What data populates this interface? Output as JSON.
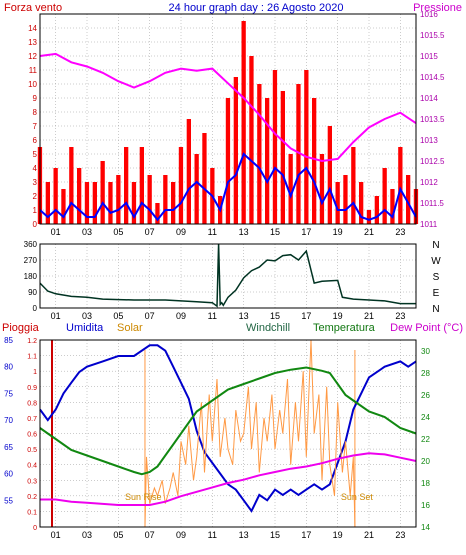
{
  "header": {
    "left": "Forza vento",
    "center": "24 hour graph day : 26 Agosto 2020",
    "right": "Pressione"
  },
  "colors": {
    "wind_bar": "#ff0000",
    "wind_line": "#0000ff",
    "pressure": "#ff00ff",
    "direction": "#003322",
    "humidity": "#0000cc",
    "solar": "#ff9944",
    "temperature": "#118811",
    "dewpoint": "#ee00ee",
    "rain": "#cc0000",
    "grid": "#999999",
    "frame": "#000000",
    "left_axis_top": "#cc0000",
    "right_axis_top": "#aa00aa"
  },
  "chart_data": [
    {
      "type": "line",
      "name": "wind-pressure",
      "x_ticks": [
        "01",
        "03",
        "05",
        "07",
        "09",
        "11",
        "13",
        "15",
        "17",
        "19",
        "21",
        "23"
      ],
      "xlim": [
        0,
        24
      ],
      "y_left": {
        "lim": [
          0,
          15
        ],
        "ticks": [
          "0",
          "1",
          "2",
          "3",
          "4",
          "5",
          "6",
          "7",
          "8",
          "9",
          "10",
          "11",
          "12",
          "13",
          "14"
        ]
      },
      "y_right": {
        "lim": [
          1011,
          1016
        ],
        "ticks": [
          "1011",
          "1011.5",
          "1012",
          "1012.5",
          "1013",
          "1013.5",
          "1014",
          "1014.5",
          "1015",
          "1015.5",
          "1016"
        ]
      },
      "series": [
        {
          "key": "gust",
          "color_key": "wind_bar",
          "style": "bars",
          "x": [
            0,
            0.5,
            1,
            1.5,
            2,
            2.5,
            3,
            3.5,
            4,
            4.5,
            5,
            5.5,
            6,
            6.5,
            7,
            7.5,
            8,
            8.5,
            9,
            9.5,
            10,
            10.5,
            11,
            11.5,
            12,
            12.5,
            13,
            13.5,
            14,
            14.5,
            15,
            15.5,
            16,
            16.5,
            17,
            17.5,
            18,
            18.5,
            19,
            19.5,
            20,
            20.5,
            21,
            21.5,
            22,
            22.5,
            23,
            23.5,
            24
          ],
          "y": [
            5.5,
            3,
            4,
            2.5,
            5.5,
            4,
            3,
            3,
            4.5,
            3,
            3.5,
            5.5,
            3,
            5.5,
            3.5,
            1.5,
            3.5,
            3,
            5.5,
            7.5,
            5,
            6.5,
            4,
            2,
            9,
            10.5,
            14.5,
            12,
            10,
            9,
            11,
            9.5,
            5,
            10,
            11,
            9,
            5,
            7,
            3,
            3.5,
            5.5,
            3,
            1,
            2,
            4,
            2.5,
            5.5,
            3.5,
            2.5
          ]
        },
        {
          "key": "wind",
          "color_key": "wind_line",
          "style": "line",
          "x": [
            0,
            0.5,
            1,
            1.5,
            2,
            2.5,
            3,
            3.5,
            4,
            4.5,
            5,
            5.5,
            6,
            6.5,
            7,
            7.5,
            8,
            8.5,
            9,
            9.5,
            10,
            10.5,
            11,
            11.5,
            12,
            12.5,
            13,
            13.5,
            14,
            14.5,
            15,
            15.5,
            16,
            16.5,
            17,
            17.5,
            18,
            18.5,
            19,
            19.5,
            20,
            20.5,
            21,
            21.5,
            22,
            22.5,
            23,
            23.5,
            24
          ],
          "y": [
            1,
            0.5,
            1,
            0.5,
            1.5,
            1,
            0.5,
            0.5,
            1.5,
            0.8,
            1,
            1.5,
            0.5,
            1.5,
            1,
            0.3,
            1,
            1,
            1.5,
            2.5,
            3,
            2.5,
            2,
            1,
            3,
            3.5,
            5,
            4.5,
            4,
            3,
            4,
            3.5,
            2,
            3.5,
            4,
            3,
            1.5,
            2.5,
            1,
            1,
            1.5,
            0.5,
            0.3,
            0.5,
            1,
            0.5,
            2.5,
            1.5,
            0.5
          ]
        },
        {
          "key": "pressure",
          "color_key": "pressure",
          "style": "line",
          "axis": "right",
          "x": [
            0,
            1,
            2,
            3,
            4,
            5,
            6,
            7,
            8,
            9,
            10,
            11,
            12,
            13,
            14,
            15,
            16,
            17,
            18,
            19,
            20,
            21,
            22,
            23,
            24
          ],
          "y": [
            1015,
            1015.05,
            1014.85,
            1014.75,
            1014.6,
            1014.4,
            1014.25,
            1014.4,
            1014.6,
            1014.7,
            1014.65,
            1014.7,
            1014.35,
            1014,
            1013.6,
            1013.15,
            1012.8,
            1012.6,
            1012.5,
            1012.55,
            1012.95,
            1013.3,
            1013.5,
            1013.65,
            1013.4
          ]
        }
      ]
    },
    {
      "type": "line",
      "name": "wind-direction",
      "x_ticks": [
        "01",
        "03",
        "05",
        "07",
        "09",
        "11",
        "13",
        "15",
        "17",
        "19",
        "21",
        "23"
      ],
      "xlim": [
        0,
        24
      ],
      "y_left": {
        "lim": [
          0,
          360
        ],
        "ticks": [
          "0",
          "90",
          "180",
          "270",
          "360"
        ]
      },
      "y_right": {
        "lim": [
          0,
          360
        ],
        "ticks": [
          "N",
          "E",
          "S",
          "W",
          "N"
        ]
      },
      "series": [
        {
          "key": "direction",
          "color_key": "direction",
          "style": "line",
          "x": [
            0,
            0.5,
            1,
            2,
            3,
            4,
            6,
            7,
            8,
            9,
            10,
            11,
            11.3,
            11.4,
            11.5,
            11.6,
            11.7,
            12,
            12.5,
            13,
            13.5,
            14,
            14.5,
            15,
            15.5,
            16,
            16.5,
            17,
            17.5,
            18,
            19,
            19.3,
            20,
            21,
            22,
            23,
            24
          ],
          "y": [
            140,
            95,
            80,
            65,
            60,
            50,
            45,
            45,
            45,
            40,
            35,
            30,
            10,
            360,
            20,
            30,
            15,
            60,
            100,
            170,
            210,
            230,
            270,
            265,
            295,
            300,
            270,
            320,
            140,
            150,
            155,
            60,
            50,
            45,
            40,
            25,
            25
          ]
        }
      ]
    },
    {
      "type": "line",
      "name": "rain-humidity-temperature",
      "labels": {
        "rain": "Pioggia",
        "humidity": "Umidita",
        "solar": "Solar",
        "windchill": "Windchill",
        "temperature": "Temperatura",
        "dewpoint": "Dew Point (°C)"
      },
      "annotations": {
        "sunrise": "Sun Rise",
        "sunset": "Sun Set"
      },
      "x_ticks": [
        "01",
        "03",
        "05",
        "07",
        "09",
        "11",
        "13",
        "15",
        "17",
        "19",
        "21",
        "23"
      ],
      "xlim": [
        0,
        24
      ],
      "rain_axis": {
        "lim": [
          0,
          1.2
        ],
        "ticks": [
          "0",
          "0.1",
          "0.2",
          "0.3",
          "0.4",
          "0.5",
          "0.6",
          "0.7",
          "0.8",
          "0.9",
          "1",
          "1.1",
          "1.2"
        ]
      },
      "humidity_axis": {
        "lim": [
          50,
          85
        ],
        "ticks": [
          "55",
          "60",
          "65",
          "70",
          "75",
          "80",
          "85"
        ]
      },
      "temp_axis": {
        "lim": [
          14,
          31
        ],
        "ticks": [
          "14",
          "16",
          "18",
          "20",
          "22",
          "24",
          "26",
          "28",
          "30"
        ]
      },
      "series": [
        {
          "key": "humidity",
          "color_key": "humidity",
          "axis": "humidity",
          "x": [
            0,
            0.5,
            1,
            1.5,
            2,
            2.5,
            3,
            4,
            5,
            6,
            7,
            7.5,
            8,
            8.5,
            9,
            9.5,
            10,
            10.5,
            11,
            11.5,
            12,
            12.5,
            13,
            13.5,
            14,
            14.5,
            15,
            15.5,
            16,
            16.5,
            17,
            17.5,
            18,
            18.5,
            19,
            19.5,
            20,
            20.5,
            21,
            22,
            23,
            23.5,
            24
          ],
          "y": [
            72,
            70,
            72,
            75,
            77,
            79,
            80,
            81,
            82,
            82,
            84,
            84,
            83,
            80,
            77,
            74,
            68,
            64,
            62,
            60,
            58,
            57,
            55,
            53,
            56,
            55,
            57,
            56,
            57,
            56,
            57,
            58,
            57,
            58,
            62,
            66,
            72,
            75,
            78,
            80,
            81,
            80,
            81
          ]
        },
        {
          "key": "solar",
          "color_key": "solar",
          "axis": "rain_rel",
          "x": [
            6.7,
            6.8,
            7,
            7.3,
            7.5,
            7.8,
            8,
            8.3,
            8.5,
            8.8,
            9,
            9.3,
            9.5,
            9.8,
            10,
            10.3,
            10.5,
            10.8,
            11,
            11.3,
            11.5,
            11.8,
            12,
            12.3,
            12.5,
            12.8,
            13,
            13.3,
            13.5,
            13.8,
            14,
            14.3,
            14.5,
            14.8,
            15,
            15.3,
            15.5,
            15.8,
            16,
            16.3,
            16.5,
            16.8,
            17,
            17.3,
            17.5,
            17.8,
            18,
            18.3,
            18.5,
            18.8,
            19,
            19.3,
            19.5,
            19.8,
            20,
            20.1
          ],
          "y": [
            0,
            0.45,
            0.15,
            0.25,
            0.2,
            0.3,
            0.15,
            0.25,
            0.35,
            0.2,
            0.55,
            0.4,
            0.65,
            0.3,
            0.45,
            0.8,
            0.35,
            0.85,
            0.55,
            0.95,
            0.45,
            0.7,
            0.5,
            0.4,
            0.75,
            0.55,
            0.6,
            0.9,
            0.5,
            0.8,
            0.35,
            0.7,
            0.55,
            0.85,
            0.5,
            0.75,
            0.6,
            0.95,
            0.4,
            0.8,
            0.55,
            1,
            0.45,
            1.2,
            0.6,
            0.85,
            0.3,
            0.9,
            0.4,
            0.2,
            0.8,
            0.35,
            0.55,
            0.2,
            0.45,
            0
          ]
        },
        {
          "key": "temperature",
          "color_key": "temperature",
          "axis": "temp",
          "x": [
            0,
            0.5,
            1,
            1.5,
            2,
            3,
            4,
            5,
            6,
            6.5,
            7,
            7.5,
            8,
            8.5,
            9,
            9.5,
            10,
            11,
            12,
            13,
            14,
            15,
            16,
            17,
            18,
            18.5,
            19,
            19.5,
            20,
            21,
            22,
            23,
            24
          ],
          "y": [
            23,
            22.5,
            22,
            21.5,
            21,
            20.5,
            20,
            19.5,
            19,
            18.8,
            19,
            19.5,
            20.5,
            21.5,
            22.5,
            23.5,
            24.5,
            25.5,
            26.5,
            27,
            27.5,
            28,
            28.3,
            28.5,
            28.2,
            28,
            27,
            26,
            25.5,
            24.5,
            24,
            23,
            22.5
          ]
        },
        {
          "key": "dewpoint",
          "color_key": "dewpoint",
          "axis": "temp",
          "x": [
            0,
            1,
            2,
            3,
            4,
            5,
            6,
            7,
            8,
            9,
            10,
            11,
            12,
            13,
            14,
            15,
            16,
            17,
            18,
            19,
            20,
            21,
            22,
            23,
            24
          ],
          "y": [
            16.5,
            16.5,
            16.3,
            16.2,
            16.1,
            16,
            16,
            16,
            16.3,
            16.8,
            17.2,
            17.6,
            18,
            18.3,
            18.7,
            19,
            19.3,
            19.5,
            19.8,
            20.2,
            20.5,
            20.7,
            20.6,
            20.3,
            20
          ]
        }
      ]
    }
  ]
}
